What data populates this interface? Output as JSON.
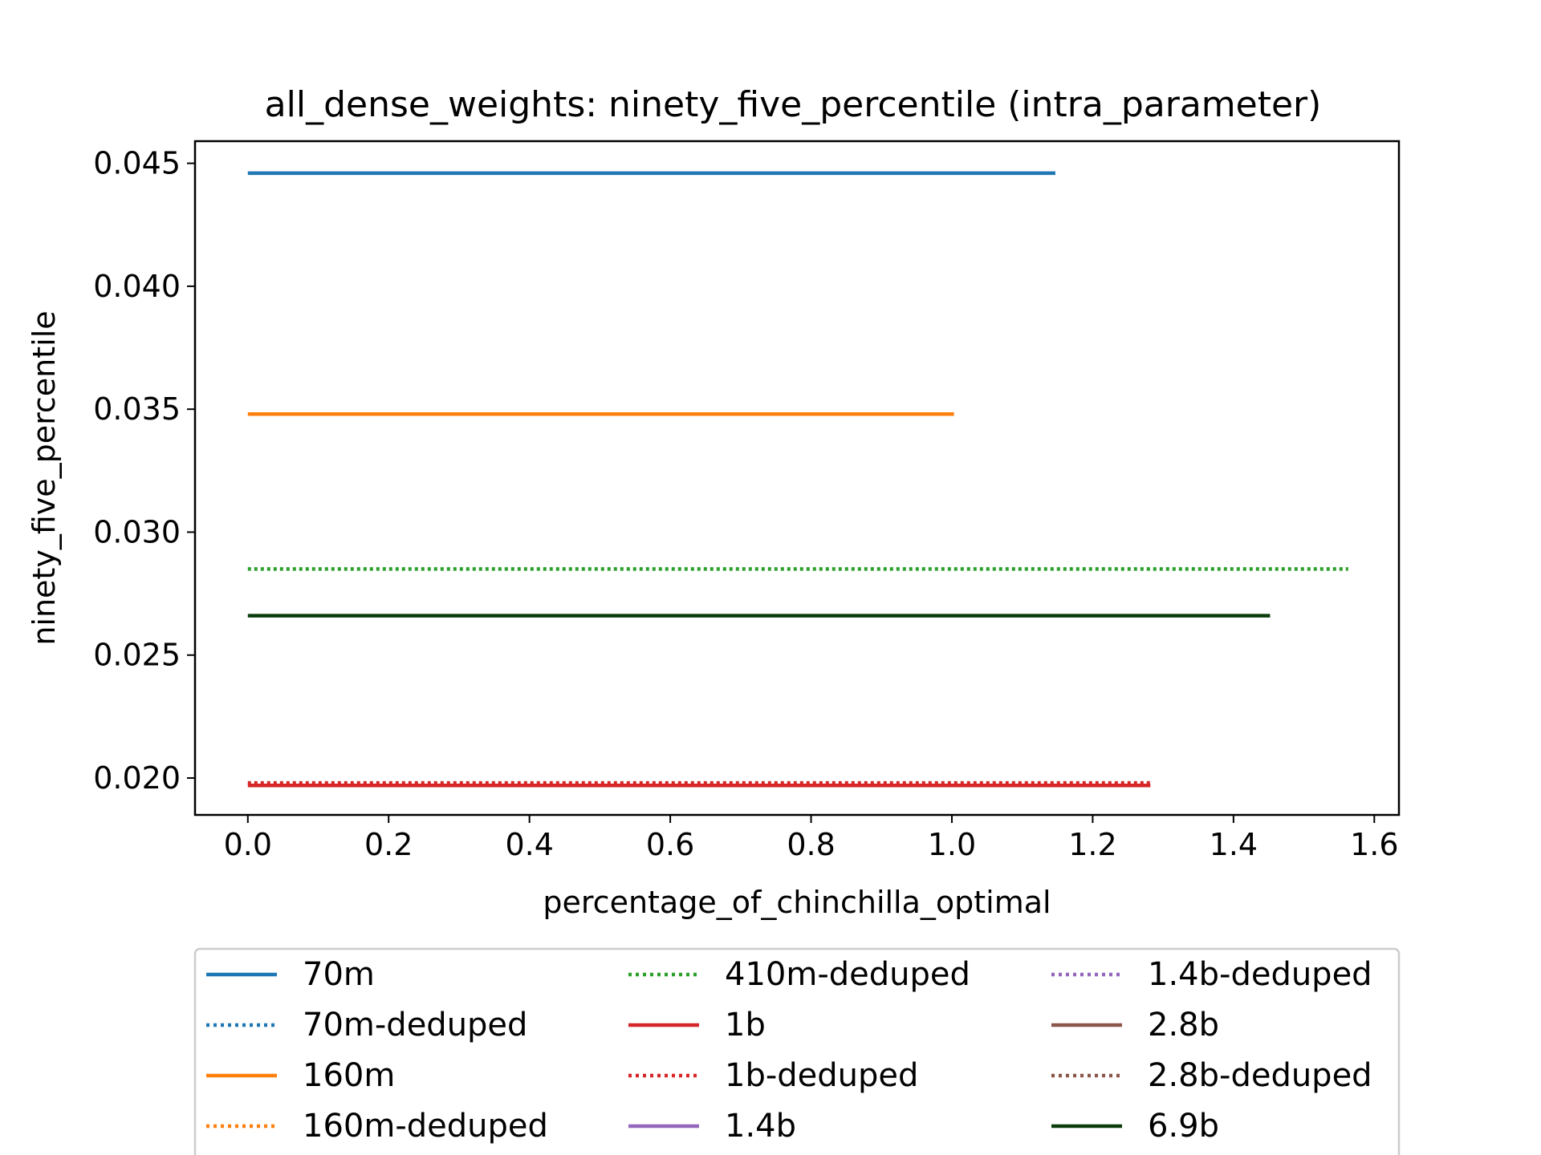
{
  "chart_data": {
    "type": "line",
    "title": "all_dense_weights: ninety_five_percentile (intra_parameter)",
    "xlabel": "percentage_of_chinchilla_optimal",
    "ylabel": "ninety_five_percentile",
    "xlim": [
      -0.075,
      1.635
    ],
    "ylim": [
      0.0185,
      0.0459
    ],
    "xticks": [
      0.0,
      0.2,
      0.4,
      0.6,
      0.8,
      1.0,
      1.2,
      1.4,
      1.6
    ],
    "xtick_labels": [
      "0.0",
      "0.2",
      "0.4",
      "0.6",
      "0.8",
      "1.0",
      "1.2",
      "1.4",
      "1.6"
    ],
    "yticks": [
      0.02,
      0.025,
      0.03,
      0.035,
      0.04,
      0.045
    ],
    "ytick_labels": [
      "0.020",
      "0.025",
      "0.030",
      "0.035",
      "0.040",
      "0.045"
    ],
    "grid": false,
    "legend_placement": "below plot, 3 columns",
    "series": [
      {
        "name": "70m",
        "color": "#1f77b4",
        "dash": "solid",
        "x": [
          0.0,
          1.147
        ],
        "y": [
          0.0446,
          0.0446
        ]
      },
      {
        "name": "70m-deduped",
        "color": "#1f77b4",
        "dash": "dotted",
        "x": [],
        "y": []
      },
      {
        "name": "160m",
        "color": "#ff7f0e",
        "dash": "solid",
        "x": [
          0.0,
          1.003
        ],
        "y": [
          0.0348,
          0.0348
        ]
      },
      {
        "name": "160m-deduped",
        "color": "#ff7f0e",
        "dash": "dotted",
        "x": [],
        "y": []
      },
      {
        "name": "410m-deduped",
        "color": "#2ca02c",
        "dash": "dotted",
        "x": [
          0.0,
          1.563
        ],
        "y": [
          0.0285,
          0.0285
        ]
      },
      {
        "name": "1b",
        "color": "#d62728",
        "dash": "solid",
        "x": [
          0.0,
          1.282
        ],
        "y": [
          0.0197,
          0.0197
        ]
      },
      {
        "name": "1b-deduped",
        "color": "#d62728",
        "dash": "dotted",
        "x": [
          0.0,
          1.282
        ],
        "y": [
          0.0198,
          0.0198
        ]
      },
      {
        "name": "1.4b",
        "color": "#9467bd",
        "dash": "solid",
        "x": [],
        "y": []
      },
      {
        "name": "1.4b-deduped",
        "color": "#9467bd",
        "dash": "dotted",
        "x": [],
        "y": []
      },
      {
        "name": "2.8b",
        "color": "#8c564b",
        "dash": "solid",
        "x": [],
        "y": []
      },
      {
        "name": "2.8b-deduped",
        "color": "#8c564b",
        "dash": "dotted",
        "x": [],
        "y": []
      },
      {
        "name": "6.9b",
        "color": "#0b3d0b",
        "dash": "solid",
        "x": [
          0.0,
          1.452
        ],
        "y": [
          0.0266,
          0.0266
        ]
      }
    ]
  }
}
